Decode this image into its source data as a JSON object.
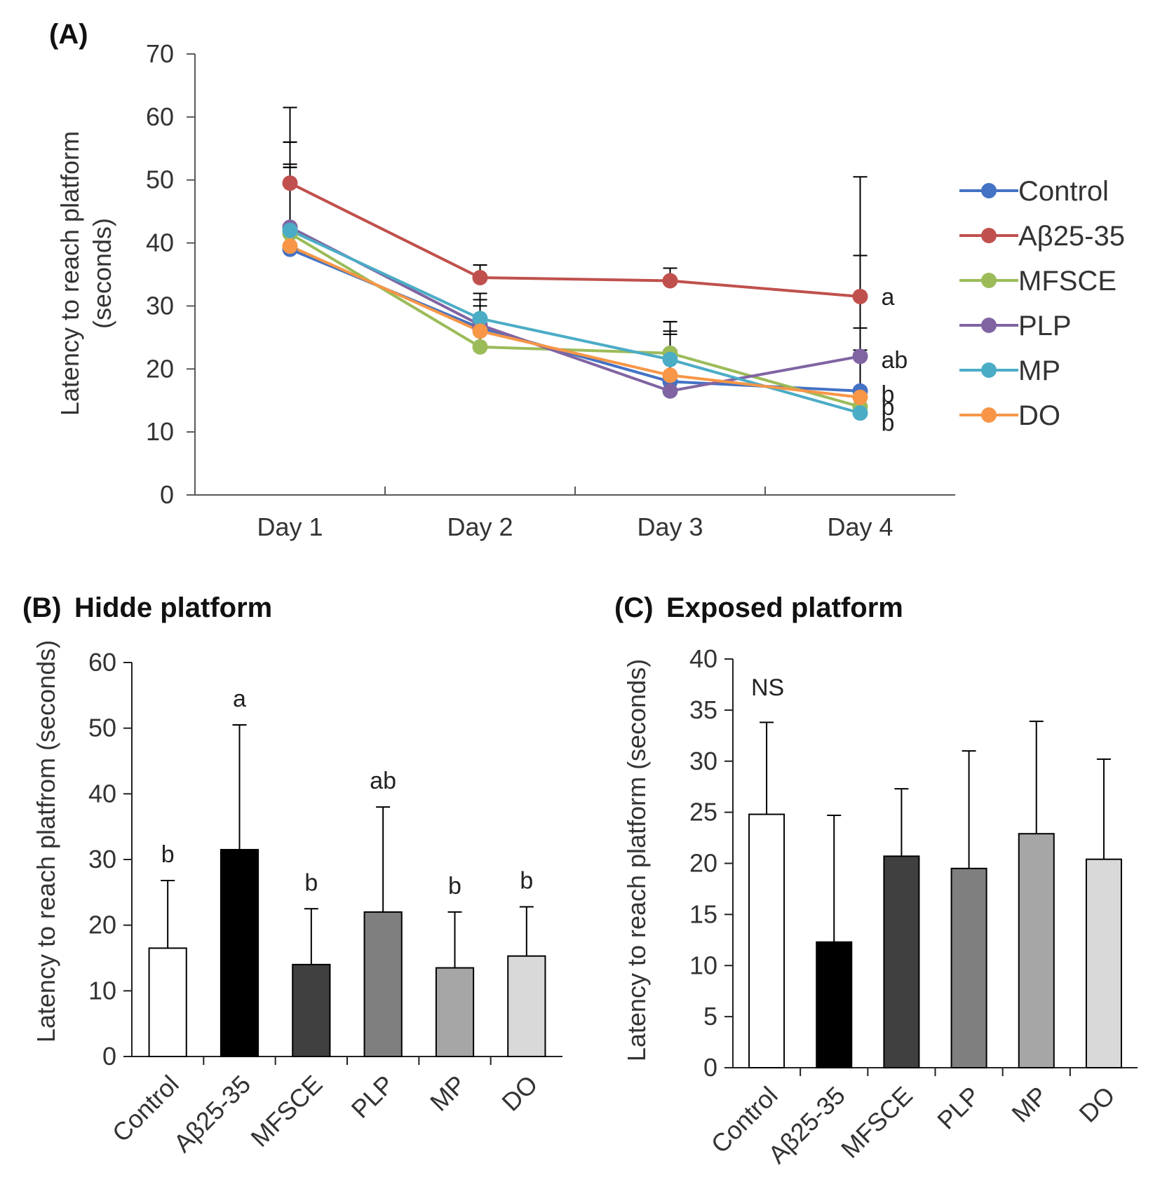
{
  "chart_data": [
    {
      "id": "A",
      "type": "line",
      "panel_label": "(A)",
      "title": "",
      "categories": [
        "Day 1",
        "Day 2",
        "Day 3",
        "Day 4"
      ],
      "ylabel_lines": [
        "Latency to reach platform",
        "(seconds)"
      ],
      "ylim": [
        0,
        70
      ],
      "yticks": [
        0,
        10,
        20,
        30,
        40,
        50,
        60,
        70
      ],
      "legend_position": "right",
      "series": [
        {
          "name": "Control",
          "color": "#4472c4",
          "values": [
            39,
            26.5,
            18,
            16.5
          ],
          "errors": [
            13,
            3.5,
            5,
            10
          ]
        },
        {
          "name": "Aβ25-35",
          "color": "#c0504d",
          "values": [
            49.5,
            34.5,
            34,
            31.5
          ],
          "errors": [
            12,
            2,
            2,
            19
          ]
        },
        {
          "name": "MFSCE",
          "color": "#9bbb59",
          "values": [
            41.5,
            23.5,
            22.5,
            14
          ],
          "errors": [
            11,
            4,
            5,
            8.5
          ]
        },
        {
          "name": "PLP",
          "color": "#8064a2",
          "values": [
            42.5,
            27,
            16.5,
            22
          ],
          "errors": [
            13.5,
            4,
            9,
            16
          ]
        },
        {
          "name": "MP",
          "color": "#4bacc6",
          "values": [
            42,
            28,
            21.5,
            13
          ],
          "errors": [
            14,
            4,
            6,
            9
          ]
        },
        {
          "name": "DO",
          "color": "#f79646",
          "values": [
            39.5,
            26,
            19,
            15.5
          ],
          "errors": [
            12.5,
            5,
            7,
            7.5
          ]
        }
      ],
      "end_labels": [
        {
          "text": "a",
          "value": 31.5
        },
        {
          "text": "ab",
          "value": 21.5
        },
        {
          "text": "b",
          "value": 16
        },
        {
          "text": "b",
          "value": 14
        },
        {
          "text": "b",
          "value": 11.5
        }
      ]
    },
    {
      "id": "B",
      "type": "bar",
      "panel_label": "(B)",
      "title": "Hidde platform",
      "categories": [
        "Control",
        "Aβ25-35",
        "MFSCE",
        "PLP",
        "MP",
        "DO"
      ],
      "values": [
        16.5,
        31.5,
        14,
        22,
        13.5,
        15.3
      ],
      "errors": [
        10.3,
        19,
        8.5,
        16,
        8.5,
        7.5
      ],
      "colors": [
        "#ffffff",
        "#000000",
        "#404040",
        "#7f7f7f",
        "#a6a6a6",
        "#d9d9d9"
      ],
      "letters": [
        "b",
        "a",
        "b",
        "ab",
        "b",
        "b"
      ],
      "ylabel": "Latency to reach platfrom (seconds)",
      "ylim": [
        0,
        60
      ],
      "yticks": [
        0,
        10,
        20,
        30,
        40,
        50,
        60
      ]
    },
    {
      "id": "C",
      "type": "bar",
      "panel_label": "(C)",
      "title": "Exposed platform",
      "categories": [
        "Control",
        "Aβ25-35",
        "MFSCE",
        "PLP",
        "MP",
        "DO"
      ],
      "values": [
        24.8,
        12.3,
        20.7,
        19.5,
        22.9,
        20.4
      ],
      "errors": [
        9,
        12.4,
        6.6,
        11.5,
        11,
        9.8
      ],
      "colors": [
        "#ffffff",
        "#000000",
        "#404040",
        "#7f7f7f",
        "#a6a6a6",
        "#d9d9d9"
      ],
      "annotation": "NS",
      "ylabel": "Latency to reach platform (seconds)",
      "ylim": [
        0,
        40
      ],
      "yticks": [
        0,
        5,
        10,
        15,
        20,
        25,
        30,
        35,
        40
      ]
    }
  ]
}
